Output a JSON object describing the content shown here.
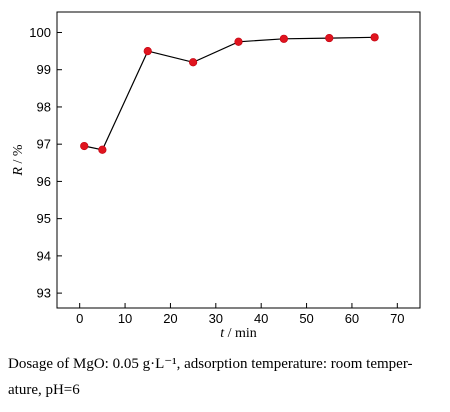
{
  "chart_data": {
    "type": "line",
    "x": [
      1,
      5,
      15,
      25,
      35,
      45,
      55,
      65
    ],
    "y": [
      96.95,
      96.85,
      99.5,
      99.2,
      99.75,
      99.83,
      99.85,
      99.87
    ],
    "xlabel_var": "t",
    "xlabel_unit": " / min",
    "ylabel_var": "R",
    "ylabel_unit": " / %",
    "xlim": [
      -5,
      75
    ],
    "ylim": [
      92.6,
      100.55
    ],
    "xticks": [
      "0",
      "10",
      "20",
      "30",
      "40",
      "50",
      "60",
      "70"
    ],
    "yticks": [
      "93",
      "94",
      "95",
      "96",
      "97",
      "98",
      "99",
      "100"
    ],
    "grid": false,
    "line_color": "#000000",
    "marker_color": "#e0141e"
  },
  "caption": {
    "line1": "Dosage of MgO: 0.05 g·L⁻¹, adsorption temperature: room temper-",
    "line2": "ature, pH=6"
  }
}
